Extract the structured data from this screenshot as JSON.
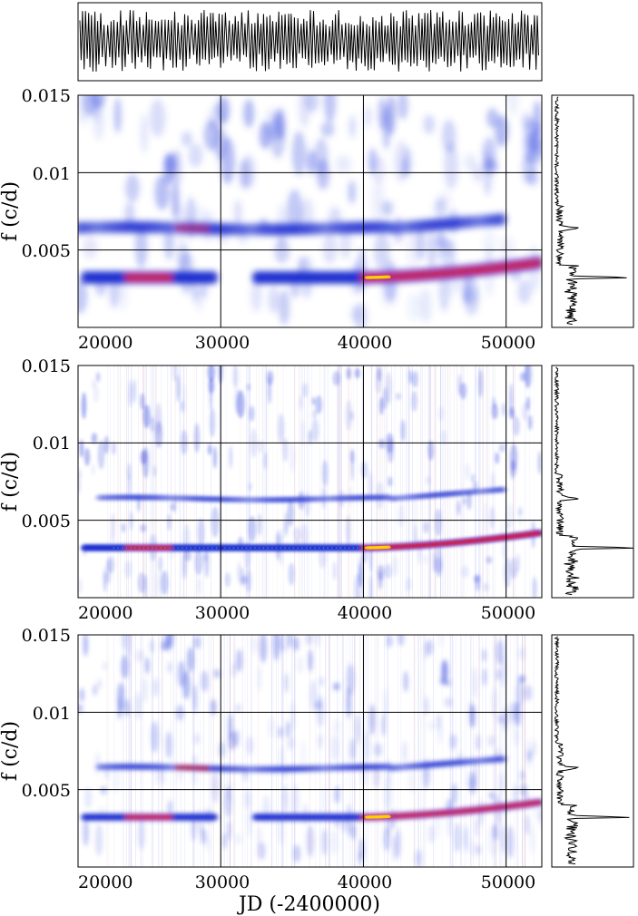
{
  "chart_data": [
    {
      "id": "lightcurve",
      "type": "line",
      "title": "",
      "xlabel": "",
      "ylabel": "",
      "xlim": [
        20000,
        52500
      ],
      "description_hidden": true,
      "series": [
        {
          "name": "",
          "color": "#000000"
        }
      ],
      "grid": false
    },
    {
      "id": "panel1",
      "type": "heatmap",
      "xlabel": "",
      "ylabel": "f (c/d)",
      "xlim": [
        20000,
        52500
      ],
      "ylim": [
        0,
        0.015
      ],
      "xticks": [
        "20000",
        "30000",
        "40000",
        "50000"
      ],
      "yticks": [
        "0.015",
        "0.01",
        "0.005"
      ],
      "grid": true,
      "colormap": [
        "#ffffff",
        "#2233cc",
        "#d2232a",
        "#ffd400"
      ],
      "ridges": [
        {
          "name": "",
          "points": [
            [
              20000,
              0.00322
            ],
            [
              30000,
              0.00322
            ],
            [
              40000,
              0.00322
            ],
            [
              45000,
              0.0034
            ],
            [
              50000,
              0.0038
            ],
            [
              52500,
              0.0042
            ]
          ]
        },
        {
          "name": "",
          "points": [
            [
              20000,
              0.0064
            ],
            [
              30000,
              0.00645
            ],
            [
              40000,
              0.0064
            ],
            [
              50000,
              0.007
            ]
          ]
        }
      ],
      "peaks": [
        {
          "x": 25000,
          "y": 0.00322,
          "intensity": 0.85
        },
        {
          "x": 28000,
          "y": 0.0066,
          "intensity": 0.6
        },
        {
          "x": 40500,
          "y": 0.00322,
          "intensity": 1.0
        },
        {
          "x": 49000,
          "y": 0.0037,
          "intensity": 0.9
        }
      ]
    },
    {
      "id": "panel2",
      "type": "heatmap",
      "xlabel": "",
      "ylabel": "f (c/d)",
      "xlim": [
        20000,
        52500
      ],
      "ylim": [
        0,
        0.015
      ],
      "xticks": [
        "20000",
        "30000",
        "40000",
        "50000"
      ],
      "yticks": [
        "0.015",
        "0.01",
        "0.005"
      ],
      "grid": true,
      "colormap": [
        "#ffffff",
        "#2233cc",
        "#d2232a",
        "#ffd400"
      ]
    },
    {
      "id": "panel3",
      "type": "heatmap",
      "xlabel": "JD (-2400000)",
      "ylabel": "f (c/d)",
      "xlim": [
        20000,
        52500
      ],
      "ylim": [
        0,
        0.015
      ],
      "xticks": [
        "20000",
        "30000",
        "40000",
        "50000"
      ],
      "yticks": [
        "0.015",
        "0.01",
        "0.005"
      ],
      "grid": true,
      "colormap": [
        "#ffffff",
        "#2233cc",
        "#d2232a",
        "#ffd400"
      ]
    },
    {
      "id": "spectra",
      "type": "line",
      "title": "",
      "ylim": [
        0,
        0.015
      ],
      "peaks_at": [
        0.00322,
        0.0064
      ],
      "grid": false
    }
  ],
  "labels": {
    "ylabel": "f (c/d)",
    "xlabel": "JD (-2400000)",
    "xticks": [
      "20000",
      "30000",
      "40000",
      "50000"
    ],
    "yticks": [
      "0.015",
      "0.01",
      "0.005"
    ]
  }
}
